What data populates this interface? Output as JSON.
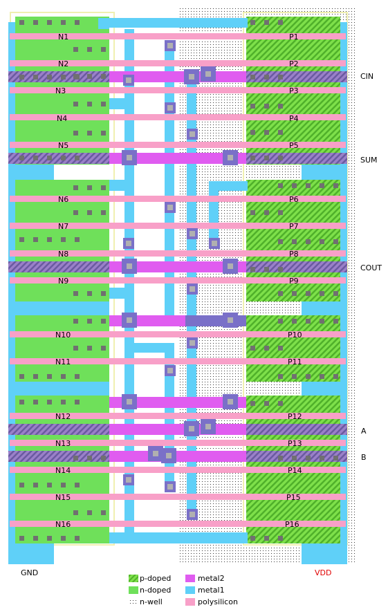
{
  "layers": {
    "p_doped": {
      "label": "p-doped",
      "color": "#7ee04a",
      "hatch": "#4fb02a"
    },
    "n_doped": {
      "label": "n-doped",
      "color": "#6fe05a"
    },
    "n_well": {
      "label": "n-well",
      "color": "#000000"
    },
    "metal2": {
      "label": "metal2",
      "color": "#e05cf0"
    },
    "metal1": {
      "label": "metal1",
      "color": "#5fd0f8"
    },
    "polysilicon": {
      "label": "polysilicon",
      "color": "#f8a0c8"
    }
  },
  "nmos": [
    "N1",
    "N2",
    "N3",
    "N4",
    "N5",
    "N6",
    "N7",
    "N8",
    "N9",
    "N10",
    "N11",
    "N12",
    "N13",
    "N14",
    "N15",
    "N16"
  ],
  "pmos": [
    "P1",
    "P2",
    "P3",
    "P4",
    "P5",
    "P6",
    "P7",
    "P8",
    "P9",
    "P10",
    "P11",
    "P12",
    "P13",
    "P14",
    "P15",
    "P16"
  ],
  "signals": {
    "cin": "CIN",
    "sum": "SUM",
    "cout": "COUT",
    "a": "A",
    "b": "B"
  },
  "rails": {
    "gnd": "GND",
    "vdd": "VDD"
  },
  "colors": {
    "vdd_label": "#e00000",
    "contact": "#707070",
    "via": "#7a70c8"
  }
}
